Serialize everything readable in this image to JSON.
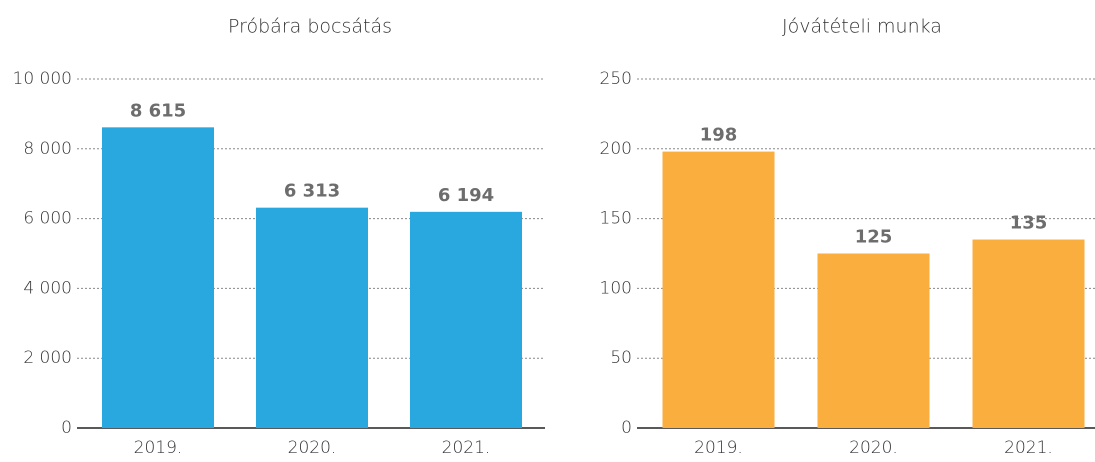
{
  "chart_data": [
    {
      "type": "bar",
      "title": "Próbára bocsátás",
      "categories": [
        "2019.",
        "2020.",
        "2021."
      ],
      "values": [
        8615,
        6313,
        6194
      ],
      "value_labels": [
        "8 615",
        "6 313",
        "6 194"
      ],
      "color": "#29a8e0",
      "ylim": [
        0,
        10000
      ],
      "yticks": [
        0,
        {
          "value": 2000,
          "label": "2 000"
        },
        {
          "value": 4000,
          "label": "4 000"
        },
        {
          "value": 6000,
          "label": "6 000"
        },
        {
          "value": 8000,
          "label": "8 000"
        },
        {
          "value": 10000,
          "label": "10 000"
        }
      ],
      "grid": true
    },
    {
      "type": "bar",
      "title": "Jóvátételi munka",
      "categories": [
        "2019.",
        "2020.",
        "2021."
      ],
      "values": [
        198,
        125,
        135
      ],
      "color": "#f9ae3d",
      "ylim": [
        0,
        250
      ],
      "yticks": [
        0,
        50,
        100,
        150,
        200,
        250
      ],
      "grid": true
    }
  ]
}
